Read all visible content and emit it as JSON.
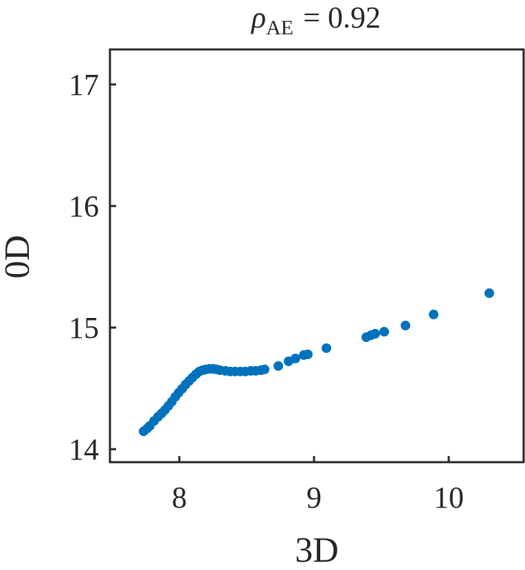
{
  "chart_data": {
    "type": "scatter",
    "title": {
      "symbol": "ρ",
      "subscript": "AE",
      "text": "= 0.92"
    },
    "xlabel": "3D",
    "ylabel": "0D",
    "color": "#0072bd",
    "x": [
      7.735,
      7.761,
      7.781,
      7.812,
      7.842,
      7.868,
      7.893,
      7.919,
      7.944,
      7.97,
      7.995,
      8.021,
      8.046,
      8.072,
      8.097,
      8.123,
      8.148,
      8.174,
      8.199,
      8.225,
      8.25,
      8.276,
      8.301,
      8.342,
      8.378,
      8.414,
      8.454,
      8.49,
      8.531,
      8.567,
      8.607,
      8.633,
      8.735,
      8.811,
      8.862,
      8.924,
      8.954,
      9.092,
      9.388,
      9.424,
      9.454,
      9.521,
      9.679,
      9.888,
      10.301
    ],
    "values": [
      14.147,
      14.17,
      14.192,
      14.232,
      14.266,
      14.294,
      14.322,
      14.356,
      14.39,
      14.43,
      14.464,
      14.497,
      14.531,
      14.56,
      14.588,
      14.616,
      14.639,
      14.65,
      14.656,
      14.661,
      14.661,
      14.656,
      14.65,
      14.644,
      14.639,
      14.639,
      14.639,
      14.639,
      14.644,
      14.644,
      14.65,
      14.656,
      14.684,
      14.723,
      14.746,
      14.774,
      14.78,
      14.831,
      14.921,
      14.938,
      14.949,
      14.966,
      15.017,
      15.108,
      15.283
    ],
    "xlim": [
      7.485,
      10.556
    ],
    "ylim": [
      13.893,
      17.288
    ],
    "xticks": [
      8,
      9,
      10
    ],
    "yticks": [
      14,
      15,
      16,
      17
    ]
  }
}
